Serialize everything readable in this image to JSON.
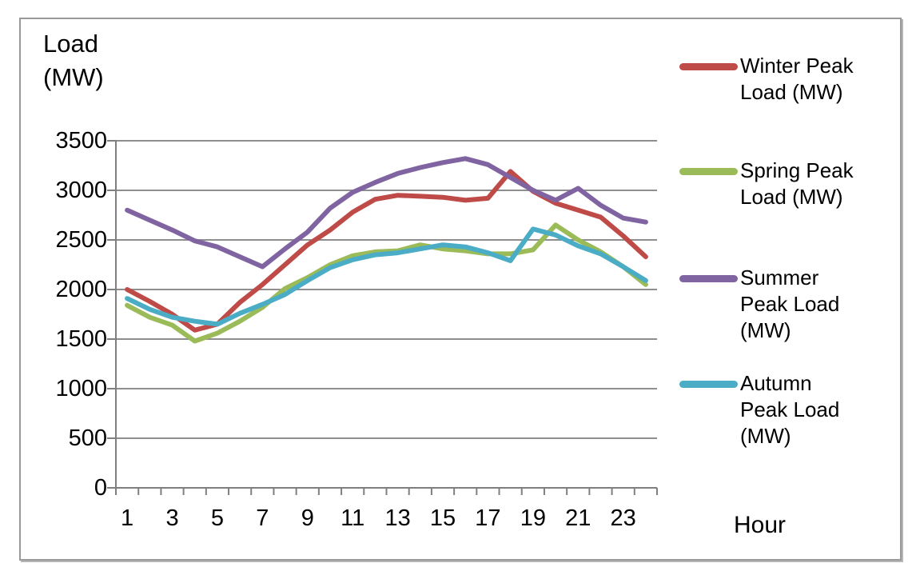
{
  "chart_data": {
    "type": "line",
    "title": "Load (MW)",
    "title_lines": [
      "Load",
      "(MW)"
    ],
    "xlabel": "Hour",
    "ylabel": "Load (MW)",
    "x": [
      1,
      2,
      3,
      4,
      5,
      6,
      7,
      8,
      9,
      10,
      11,
      12,
      13,
      14,
      15,
      16,
      17,
      18,
      19,
      20,
      21,
      22,
      23,
      24
    ],
    "x_tick_labels": [
      "1",
      "3",
      "5",
      "7",
      "9",
      "11",
      "13",
      "15",
      "17",
      "19",
      "21",
      "23"
    ],
    "y_tick_labels": [
      "0",
      "500",
      "1000",
      "1500",
      "2000",
      "2500",
      "3000",
      "3500"
    ],
    "ylim": [
      0,
      3500
    ],
    "ytick_interval": 500,
    "grid": true,
    "legend_position": "right",
    "series": [
      {
        "name": "Winter Peak Load (MW)",
        "legend_lines": [
          "Winter Peak",
          "Load (MW)"
        ],
        "color": "#BE4B48",
        "values": [
          2000,
          1880,
          1750,
          1590,
          1650,
          1870,
          2050,
          2250,
          2450,
          2600,
          2780,
          2910,
          2950,
          2940,
          2930,
          2900,
          2920,
          3190,
          2990,
          2870,
          2800,
          2730,
          2540,
          2330
        ]
      },
      {
        "name": "Spring Peak Load (MW)",
        "legend_lines": [
          "Spring Peak",
          "Load (MW)"
        ],
        "color": "#9BBB59",
        "values": [
          1840,
          1720,
          1640,
          1480,
          1560,
          1680,
          1820,
          2010,
          2120,
          2250,
          2340,
          2380,
          2390,
          2450,
          2410,
          2390,
          2360,
          2360,
          2400,
          2650,
          2500,
          2380,
          2230,
          2050
        ]
      },
      {
        "name": "Summer Peak Load (MW)",
        "legend_lines": [
          "Summer",
          "Peak Load",
          "(MW)"
        ],
        "color": "#8064A2",
        "values": [
          2800,
          2700,
          2600,
          2490,
          2430,
          2330,
          2230,
          2410,
          2580,
          2820,
          2980,
          3080,
          3170,
          3230,
          3280,
          3320,
          3260,
          3130,
          3000,
          2900,
          3020,
          2850,
          2720,
          2680
        ]
      },
      {
        "name": "Autumn Peak Load (MW)",
        "legend_lines": [
          "Autumn",
          "Peak Load",
          "(MW)"
        ],
        "color": "#4BACC6",
        "values": [
          1910,
          1800,
          1720,
          1680,
          1650,
          1760,
          1850,
          1950,
          2090,
          2220,
          2300,
          2350,
          2370,
          2410,
          2450,
          2430,
          2370,
          2290,
          2610,
          2550,
          2440,
          2360,
          2230,
          2090
        ]
      }
    ]
  },
  "colors": {
    "winter": "#BE4B48",
    "spring": "#9BBB59",
    "summer": "#8064A2",
    "autumn": "#4BACC6",
    "gridline": "#8E8E8E",
    "axis": "#7F7F7F",
    "frame_border": "#9A9A9A",
    "text": "#000000"
  }
}
